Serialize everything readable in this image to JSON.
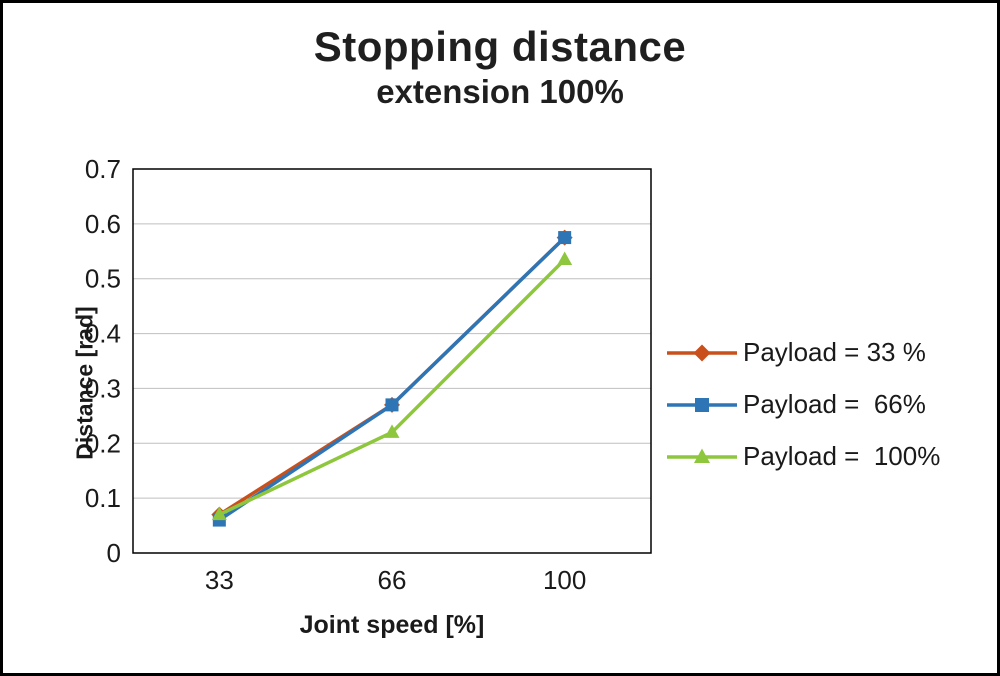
{
  "page": {
    "background": "#ffffff",
    "border_color": "#000000",
    "grid_color": "#bfbfbf",
    "text_color": "#1a1a1a"
  },
  "chart_data": {
    "type": "line",
    "title": "Stopping distance",
    "subtitle": "extension 100%",
    "xlabel": "Joint speed [%]",
    "ylabel": "Distance [rad]",
    "categories": [
      "33",
      "66",
      "100"
    ],
    "ylim": [
      0,
      0.7
    ],
    "ytick_step": 0.1,
    "yticks": [
      "0",
      "0.1",
      "0.2",
      "0.3",
      "0.4",
      "0.5",
      "0.6",
      "0.7"
    ],
    "grid": true,
    "legend_position": "right",
    "series": [
      {
        "name": "Payload = 33 %",
        "color": "#c9501b",
        "marker": "diamond",
        "values": [
          0.07,
          0.27,
          0.575
        ]
      },
      {
        "name": "Payload =  66%",
        "color": "#2e75b6",
        "marker": "square",
        "values": [
          0.06,
          0.27,
          0.575
        ]
      },
      {
        "name": "Payload =  100%",
        "color": "#8ec73d",
        "marker": "triangle",
        "values": [
          0.07,
          0.22,
          0.535
        ]
      }
    ]
  }
}
